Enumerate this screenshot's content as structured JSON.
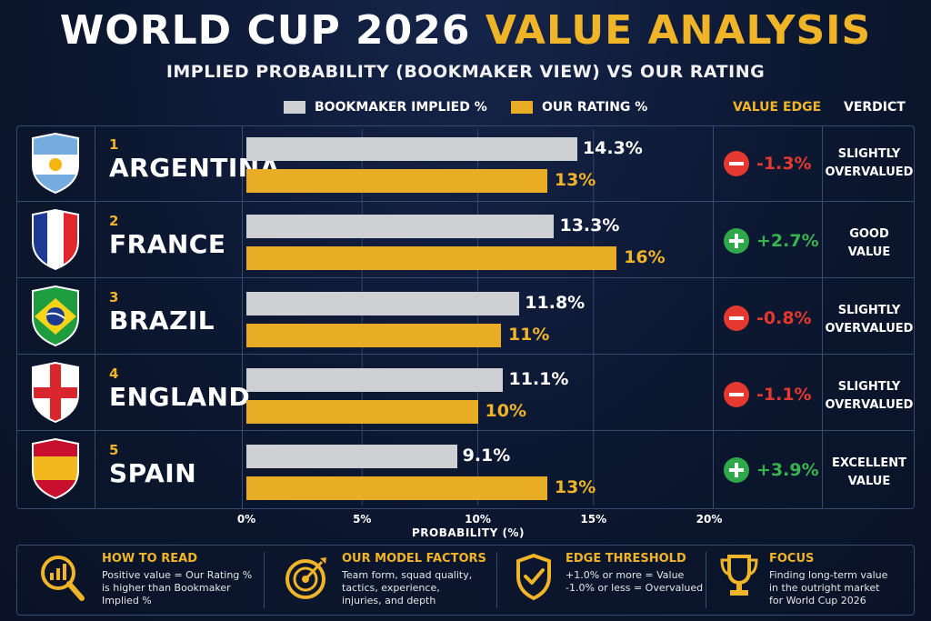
{
  "title": {
    "part1": "WORLD CUP 2026",
    "part2": "VALUE ANALYSIS"
  },
  "subtitle": "IMPLIED PROBABILITY (BOOKMAKER VIEW) VS OUR RATING",
  "legend": {
    "bookmaker": "BOOKMAKER IMPLIED %",
    "ours": "OUR RATING %"
  },
  "headers": {
    "edge": "VALUE EDGE",
    "verdict": "VERDICT"
  },
  "colors": {
    "bookmaker": "#cfd0d3",
    "ours": "#e8ad25",
    "accent": "#f0b429",
    "negative": "#e5392f",
    "positive": "#38b44f",
    "background": "#0c1730"
  },
  "chart_data": {
    "type": "bar",
    "orientation": "horizontal",
    "categories": [
      "ARGENTINA",
      "FRANCE",
      "BRAZIL",
      "ENGLAND",
      "SPAIN"
    ],
    "series": [
      {
        "name": "BOOKMAKER IMPLIED %",
        "values": [
          14.3,
          13.3,
          11.8,
          11.1,
          9.1
        ]
      },
      {
        "name": "OUR RATING %",
        "values": [
          13,
          16,
          11,
          10,
          13
        ]
      }
    ],
    "xlabel": "PROBABILITY (%)",
    "xlim": [
      0,
      20
    ],
    "xticks": [
      "0%",
      "5%",
      "10%",
      "15%",
      "20%"
    ],
    "gridlines": true
  },
  "rows": [
    {
      "rank": "1",
      "team": "ARGENTINA",
      "flag": "argentina-flag",
      "book_label": "14.3%",
      "ours_label": "13%",
      "edge": "-1.3%",
      "edge_sign": "neg",
      "verdict_l1": "SLIGHTLY",
      "verdict_l2": "OVERVALUED"
    },
    {
      "rank": "2",
      "team": "FRANCE",
      "flag": "france-flag",
      "book_label": "13.3%",
      "ours_label": "16%",
      "edge": "+2.7%",
      "edge_sign": "pos",
      "verdict_l1": "GOOD",
      "verdict_l2": "VALUE"
    },
    {
      "rank": "3",
      "team": "BRAZIL",
      "flag": "brazil-flag",
      "book_label": "11.8%",
      "ours_label": "11%",
      "edge": "-0.8%",
      "edge_sign": "neg",
      "verdict_l1": "SLIGHTLY",
      "verdict_l2": "OVERVALUED"
    },
    {
      "rank": "4",
      "team": "ENGLAND",
      "flag": "england-flag",
      "book_label": "11.1%",
      "ours_label": "10%",
      "edge": "-1.1%",
      "edge_sign": "neg",
      "verdict_l1": "SLIGHTLY",
      "verdict_l2": "OVERVALUED"
    },
    {
      "rank": "5",
      "team": "SPAIN",
      "flag": "spain-flag",
      "book_label": "9.1%",
      "ours_label": "13%",
      "edge": "+3.9%",
      "edge_sign": "pos",
      "verdict_l1": "EXCELLENT",
      "verdict_l2": "VALUE"
    }
  ],
  "info": [
    {
      "icon": "magnifier-chart-icon",
      "title": "HOW TO READ",
      "lines": [
        "Positive value = Our Rating %",
        "is higher than Bookmaker",
        "Implied %"
      ]
    },
    {
      "icon": "target-icon",
      "title": "OUR MODEL FACTORS",
      "lines": [
        "Team form, squad quality,",
        "tactics, experience,",
        "injuries, and depth"
      ]
    },
    {
      "icon": "shield-check-icon",
      "title": "EDGE THRESHOLD",
      "lines": [
        "+1.0% or more = Value",
        "-1.0% or less = Overvalued"
      ]
    },
    {
      "icon": "trophy-icon",
      "title": "FOCUS",
      "lines": [
        "Finding long-term value",
        "in the outright market",
        "for World Cup 2026"
      ]
    }
  ]
}
